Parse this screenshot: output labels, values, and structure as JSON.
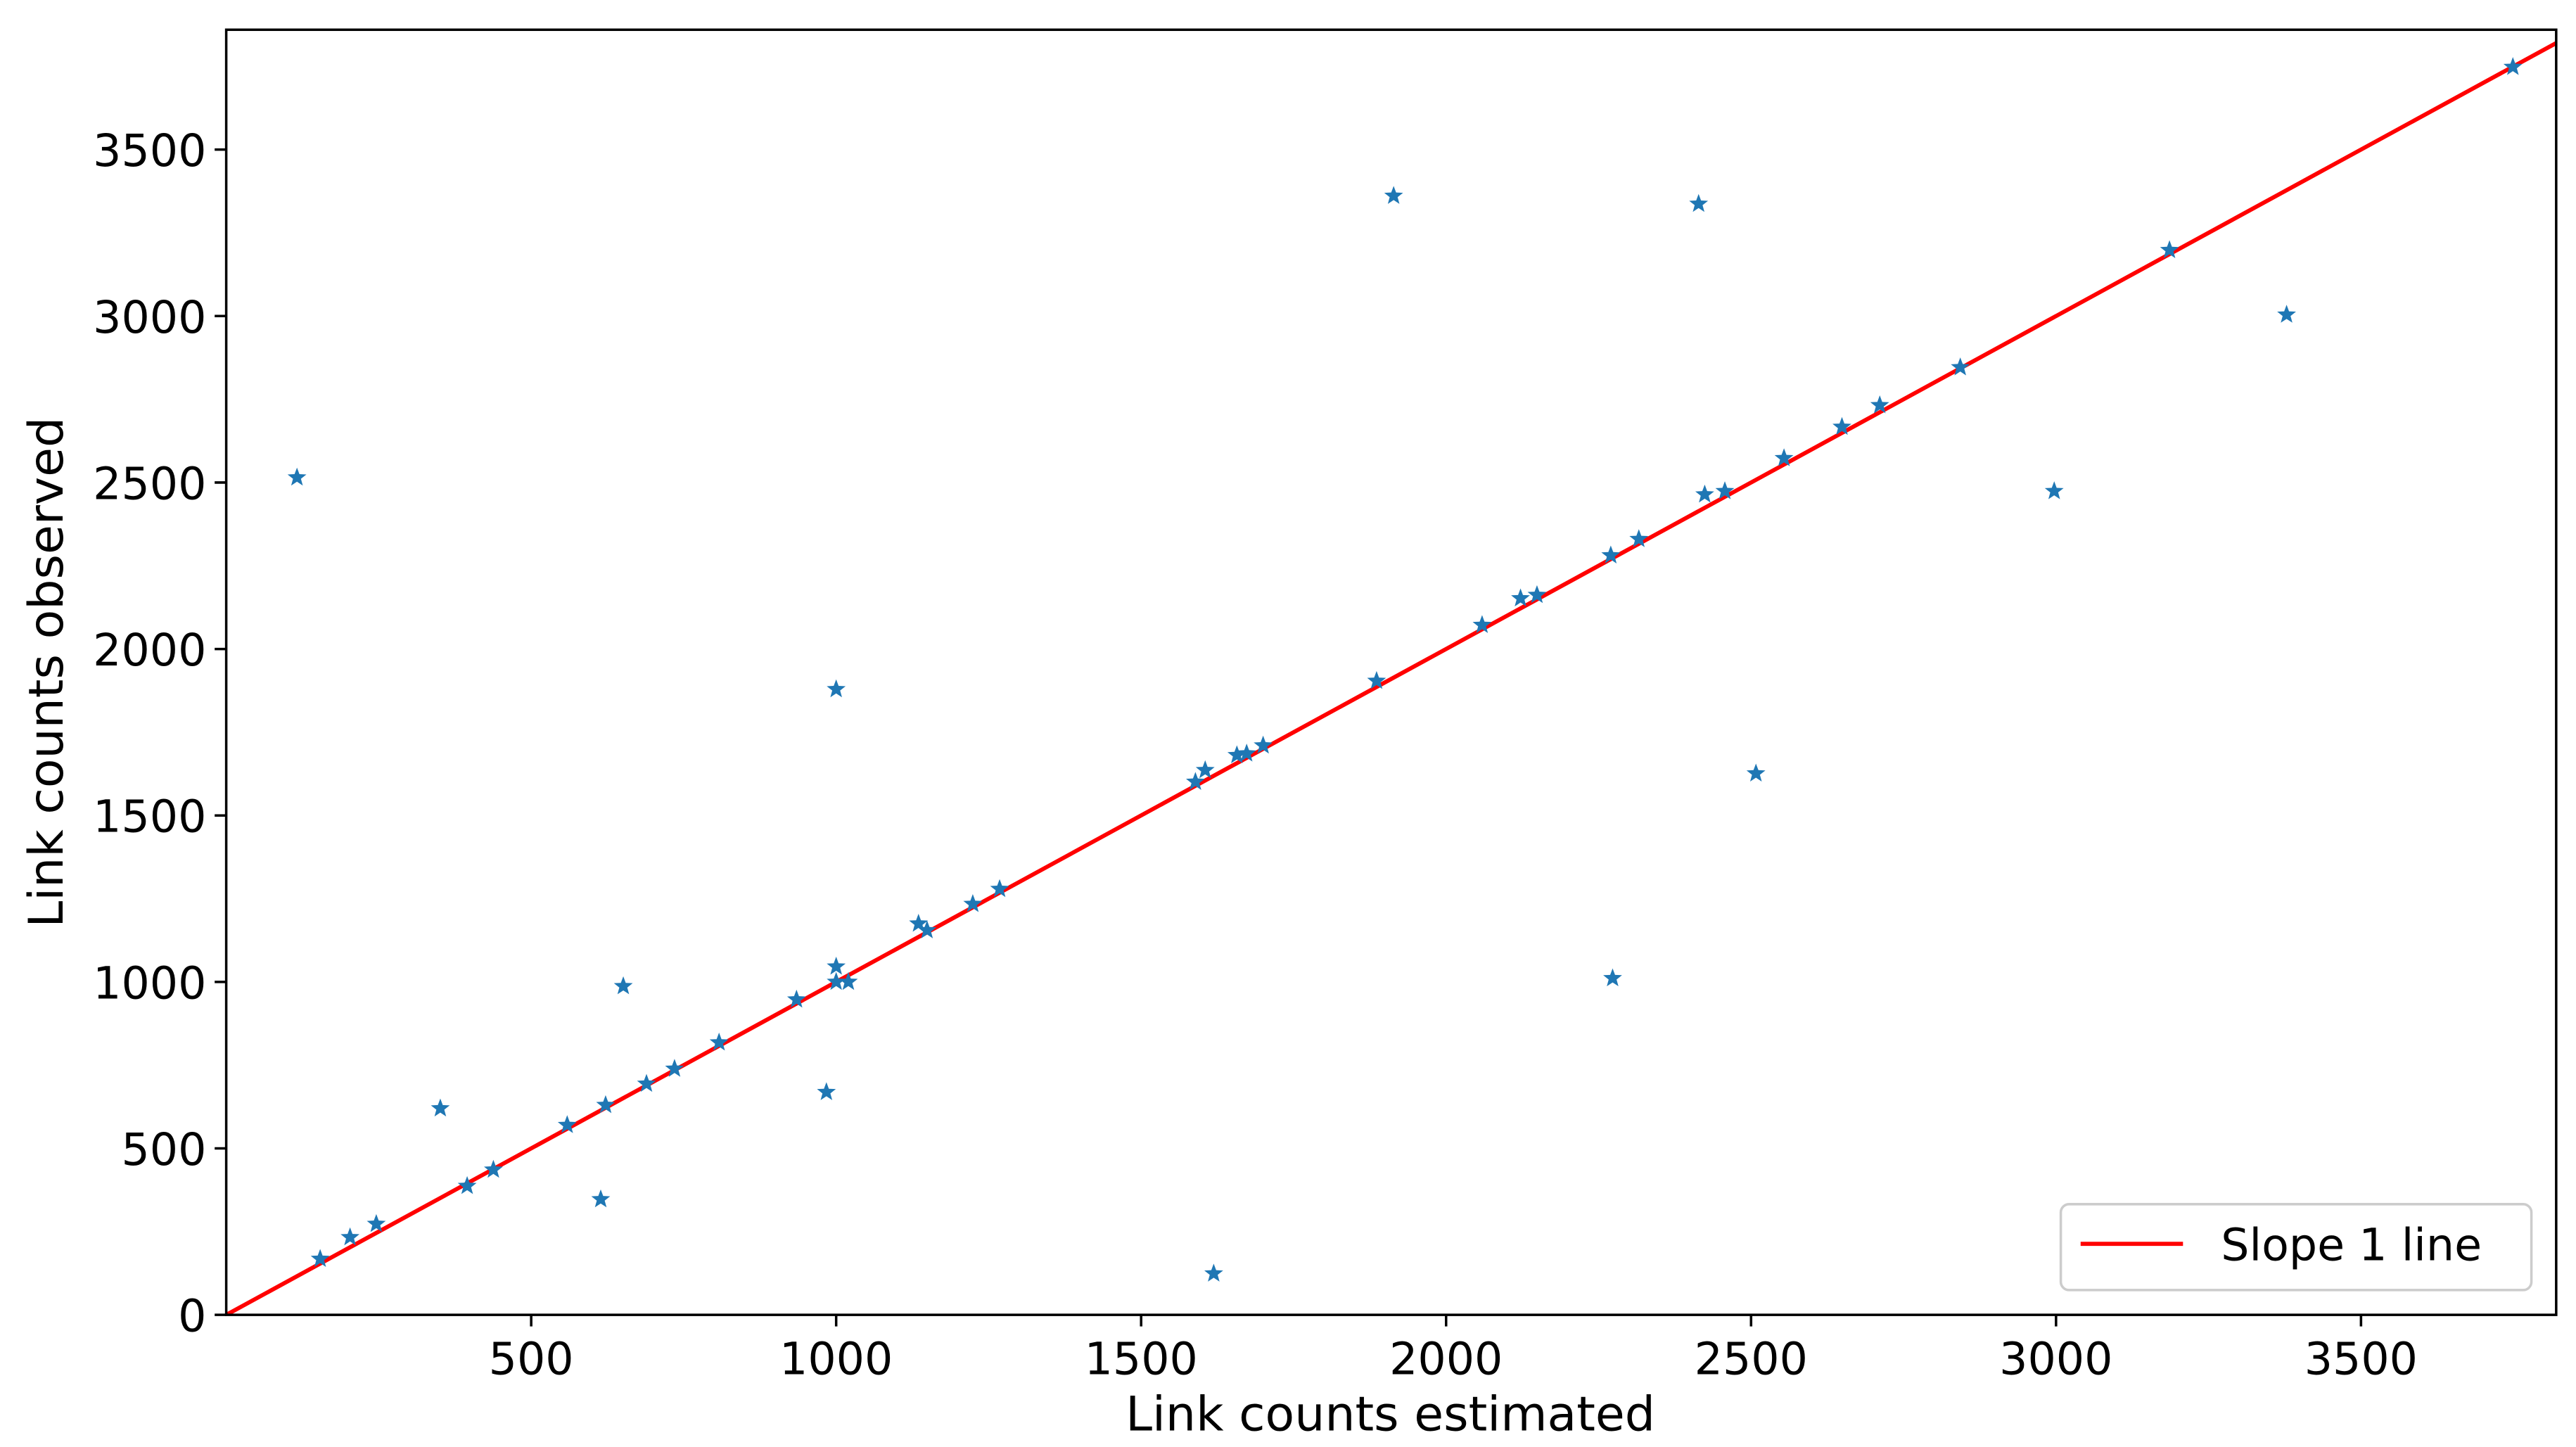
{
  "chart_data": {
    "type": "scatter",
    "xlabel": "Link counts estimated",
    "ylabel": "Link counts observed",
    "x": [
      116,
      154,
      203,
      246,
      351,
      395,
      438,
      559,
      614,
      622,
      651,
      689,
      735,
      808,
      935,
      984,
      1000,
      1000,
      1000,
      1020,
      1135,
      1149,
      1224,
      1268,
      1589,
      1605,
      1619,
      1657,
      1673,
      1700,
      1886,
      1914,
      2059,
      2122,
      2149,
      2270,
      2273,
      2316,
      2414,
      2424,
      2457,
      2508,
      2554,
      2649,
      2711,
      2843,
      2997,
      3186,
      3378,
      3749
    ],
    "values": [
      2515,
      168,
      233,
      273,
      620,
      387,
      436,
      570,
      347,
      630,
      987,
      694,
      739,
      818,
      947,
      669,
      1879,
      1046,
      1000,
      1000,
      1175,
      1155,
      1234,
      1279,
      1601,
      1636,
      124,
      1681,
      1686,
      1710,
      1904,
      3361,
      2072,
      2152,
      2162,
      2281,
      1011,
      2330,
      3337,
      2464,
      2474,
      1626,
      2573,
      2667,
      2732,
      2846,
      2474,
      3198,
      3004,
      3748
    ],
    "color": "#1f77b4",
    "line": {
      "name": "Slope 1 line",
      "color": "#ff0000",
      "x": [
        0,
        3820
      ],
      "values": [
        0,
        3820
      ]
    },
    "xlim": [
      0,
      3820
    ],
    "ylim": [
      0,
      3860
    ],
    "xticks": [
      500,
      1000,
      1500,
      2000,
      2500,
      3000,
      3500
    ],
    "yticks": [
      0,
      500,
      1000,
      1500,
      2000,
      2500,
      3000,
      3500
    ],
    "legend": "lower right"
  }
}
